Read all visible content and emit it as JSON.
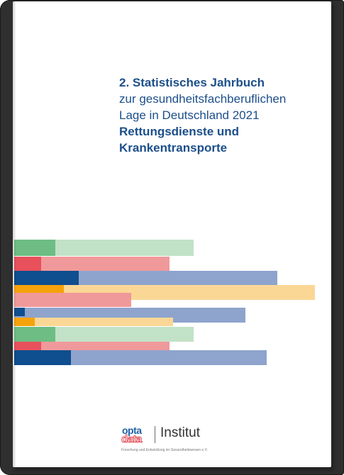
{
  "cover": {
    "title_line1": "2. Statistisches Jahrbuch",
    "title_line2": "zur gesundheitsfachberuflichen",
    "title_line3": "Lage in Deutschland 2021",
    "title_line4": "Rettungsdienste und",
    "title_line5": "Krankentransporte"
  },
  "logo": {
    "brand_top": "opta",
    "brand_bottom": "data",
    "institute": "Institut",
    "tagline": "Forschung und Entwicklung im Gesundheitswesen e.V."
  },
  "colors": {
    "title": "#1c4f8a",
    "green_dark": "#6dbd84",
    "green_light": "#c2e2c7",
    "red_dark": "#e8505b",
    "red_light": "#f0999a",
    "blue_dark": "#0f4e8f",
    "blue_light": "#8ea4cd",
    "orange_dark": "#f6a20b",
    "orange_light": "#fbd796"
  },
  "decorative_bars": [
    {
      "dark": "green_dark",
      "light": "green_light"
    },
    {
      "dark": "red_dark",
      "light": "red_light"
    },
    {
      "dark": "blue_dark",
      "light": "blue_light"
    },
    {
      "dark": "orange_dark",
      "light": "orange_light"
    },
    {
      "dark": "red_light",
      "light": "red_light"
    },
    {
      "dark": "blue_dark",
      "light": "blue_light"
    },
    {
      "dark": "orange_dark",
      "light": "orange_light"
    },
    {
      "dark": "green_dark",
      "light": "green_light"
    },
    {
      "dark": "red_dark",
      "light": "red_light"
    },
    {
      "dark": "blue_dark",
      "light": "blue_light"
    }
  ]
}
